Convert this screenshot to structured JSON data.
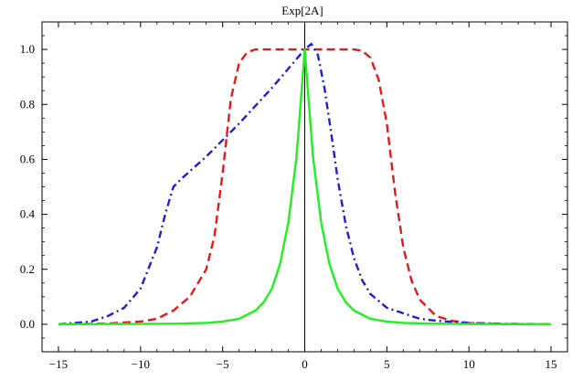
{
  "chart_data": {
    "type": "line",
    "title": "Exp[2A]",
    "xlabel": "",
    "ylabel": "",
    "xlim": [
      -16,
      16
    ],
    "ylim": [
      -0.1,
      1.1
    ],
    "xticks": [
      -15,
      -10,
      -5,
      0,
      5,
      10,
      15
    ],
    "xtick_labels": [
      "−15",
      "−10",
      "−5",
      "0",
      "5",
      "10",
      "15"
    ],
    "yticks": [
      0.0,
      0.2,
      0.4,
      0.6,
      0.8,
      1.0
    ],
    "ytick_labels": [
      "0.0",
      "0.2",
      "0.4",
      "0.6",
      "0.8",
      "1.0"
    ],
    "grid": false,
    "legend": "none",
    "series": [
      {
        "style": "dashed",
        "color": "#e31a1c",
        "x": [
          -15,
          -12,
          -10,
          -9,
          -8,
          -7,
          -6,
          -5.5,
          -5,
          -4.5,
          -4,
          -3.5,
          -3,
          -2,
          0,
          2,
          3,
          3.5,
          4,
          4.5,
          5,
          5.5,
          6,
          6.5,
          7,
          8,
          9,
          10,
          12,
          15
        ],
        "y": [
          0.0,
          0.003,
          0.01,
          0.02,
          0.05,
          0.1,
          0.2,
          0.32,
          0.55,
          0.82,
          0.95,
          0.99,
          1.0,
          1.0,
          1.0,
          1.0,
          1.0,
          0.995,
          0.97,
          0.89,
          0.73,
          0.48,
          0.28,
          0.16,
          0.09,
          0.03,
          0.012,
          0.005,
          0.001,
          0.0
        ]
      },
      {
        "style": "dashdot",
        "color": "#1f1fd0",
        "x": [
          -15,
          -13,
          -12,
          -11,
          -10,
          -9,
          -8.5,
          -8,
          -7.5,
          -6,
          -4,
          -2,
          -1,
          0,
          0.4,
          0.8,
          1.2,
          1.6,
          2,
          2.5,
          3,
          3.5,
          4,
          5,
          6,
          7,
          8,
          10,
          12,
          15
        ],
        "y": [
          0.0,
          0.01,
          0.03,
          0.06,
          0.13,
          0.28,
          0.4,
          0.5,
          0.53,
          0.61,
          0.73,
          0.86,
          0.93,
          1.0,
          1.02,
          0.98,
          0.86,
          0.7,
          0.53,
          0.36,
          0.24,
          0.16,
          0.11,
          0.06,
          0.04,
          0.02,
          0.013,
          0.005,
          0.002,
          0.0
        ]
      },
      {
        "style": "solid",
        "color": "#22ee22",
        "x": [
          -15,
          -8,
          -6,
          -5,
          -4,
          -3,
          -2.5,
          -2,
          -1.5,
          -1,
          -0.5,
          0,
          0.5,
          1,
          1.5,
          2,
          2.5,
          3,
          4,
          5,
          6,
          8,
          10,
          15
        ],
        "y": [
          0.0,
          0.002,
          0.005,
          0.01,
          0.02,
          0.05,
          0.08,
          0.13,
          0.22,
          0.37,
          0.61,
          1.0,
          0.61,
          0.37,
          0.22,
          0.13,
          0.08,
          0.05,
          0.02,
          0.01,
          0.005,
          0.002,
          0.001,
          0.0
        ]
      }
    ]
  }
}
